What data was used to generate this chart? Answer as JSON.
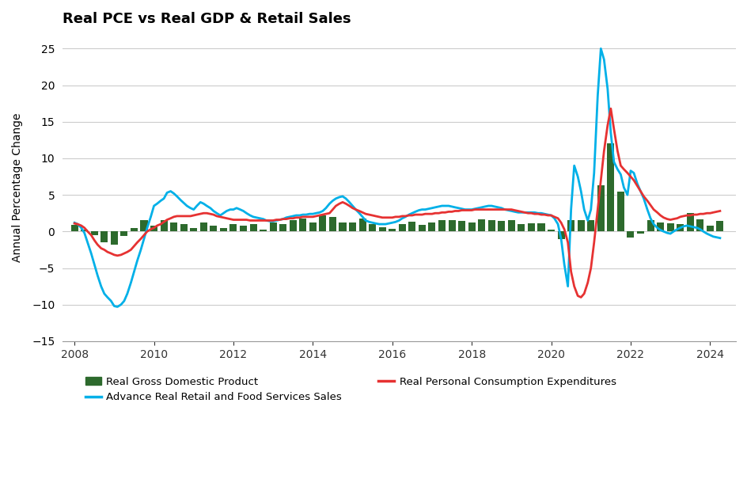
{
  "title": "Real PCE vs Real GDP & Retail Sales",
  "ylabel": "Annual Percentage Change",
  "ylim": [
    -15,
    27
  ],
  "yticks": [
    -15,
    -10,
    -5,
    0,
    5,
    10,
    15,
    20,
    25
  ],
  "background_color": "#ffffff",
  "grid_color": "#cccccc",
  "gdp_color": "#2d6a2d",
  "pce_color": "#e63232",
  "retail_color": "#00b0e8",
  "title_fontsize": 13,
  "label_fontsize": 10,
  "gdp_dates": [
    2008.0,
    2008.25,
    2008.5,
    2008.75,
    2009.0,
    2009.25,
    2009.5,
    2009.75,
    2010.0,
    2010.25,
    2010.5,
    2010.75,
    2011.0,
    2011.25,
    2011.5,
    2011.75,
    2012.0,
    2012.25,
    2012.5,
    2012.75,
    2013.0,
    2013.25,
    2013.5,
    2013.75,
    2014.0,
    2014.25,
    2014.5,
    2014.75,
    2015.0,
    2015.25,
    2015.5,
    2015.75,
    2016.0,
    2016.25,
    2016.5,
    2016.75,
    2017.0,
    2017.25,
    2017.5,
    2017.75,
    2018.0,
    2018.25,
    2018.5,
    2018.75,
    2019.0,
    2019.25,
    2019.5,
    2019.75,
    2020.0,
    2020.25,
    2020.5,
    2020.75,
    2021.0,
    2021.25,
    2021.5,
    2021.75,
    2022.0,
    2022.25,
    2022.5,
    2022.75,
    2023.0,
    2023.25,
    2023.5,
    2023.75,
    2024.0,
    2024.25
  ],
  "gdp_values": [
    0.9,
    0.2,
    -0.5,
    -1.5,
    -1.8,
    -0.6,
    0.5,
    1.5,
    0.8,
    1.5,
    1.2,
    1.0,
    0.5,
    1.2,
    0.8,
    0.5,
    1.0,
    0.8,
    1.0,
    0.3,
    1.2,
    1.0,
    1.5,
    1.8,
    1.2,
    2.2,
    2.0,
    1.2,
    1.2,
    1.8,
    1.0,
    0.6,
    0.4,
    1.0,
    1.3,
    0.9,
    1.2,
    1.5,
    1.5,
    1.4,
    1.2,
    1.7,
    1.6,
    1.4,
    1.5,
    1.0,
    1.1,
    1.1,
    0.3,
    -1.0,
    1.5,
    1.5,
    1.5,
    6.3,
    12.0,
    5.5,
    -0.8,
    -0.3,
    1.5,
    1.2,
    1.1,
    1.0,
    2.5,
    1.7,
    0.8,
    1.4
  ],
  "pce_dates": [
    2008.0,
    2008.08,
    2008.17,
    2008.25,
    2008.33,
    2008.42,
    2008.5,
    2008.58,
    2008.67,
    2008.75,
    2008.83,
    2008.92,
    2009.0,
    2009.08,
    2009.17,
    2009.25,
    2009.33,
    2009.42,
    2009.5,
    2009.58,
    2009.67,
    2009.75,
    2009.83,
    2009.92,
    2010.0,
    2010.08,
    2010.17,
    2010.25,
    2010.33,
    2010.42,
    2010.5,
    2010.58,
    2010.67,
    2010.75,
    2010.83,
    2010.92,
    2011.0,
    2011.08,
    2011.17,
    2011.25,
    2011.33,
    2011.42,
    2011.5,
    2011.58,
    2011.67,
    2011.75,
    2011.83,
    2011.92,
    2012.0,
    2012.08,
    2012.17,
    2012.25,
    2012.33,
    2012.42,
    2012.5,
    2012.58,
    2012.67,
    2012.75,
    2012.83,
    2012.92,
    2013.0,
    2013.08,
    2013.17,
    2013.25,
    2013.33,
    2013.42,
    2013.5,
    2013.58,
    2013.67,
    2013.75,
    2013.83,
    2013.92,
    2014.0,
    2014.08,
    2014.17,
    2014.25,
    2014.33,
    2014.42,
    2014.5,
    2014.58,
    2014.67,
    2014.75,
    2014.83,
    2014.92,
    2015.0,
    2015.08,
    2015.17,
    2015.25,
    2015.33,
    2015.42,
    2015.5,
    2015.58,
    2015.67,
    2015.75,
    2015.83,
    2015.92,
    2016.0,
    2016.08,
    2016.17,
    2016.25,
    2016.33,
    2016.42,
    2016.5,
    2016.58,
    2016.67,
    2016.75,
    2016.83,
    2016.92,
    2017.0,
    2017.08,
    2017.17,
    2017.25,
    2017.33,
    2017.42,
    2017.5,
    2017.58,
    2017.67,
    2017.75,
    2017.83,
    2017.92,
    2018.0,
    2018.08,
    2018.17,
    2018.25,
    2018.33,
    2018.42,
    2018.5,
    2018.58,
    2018.67,
    2018.75,
    2018.83,
    2018.92,
    2019.0,
    2019.08,
    2019.17,
    2019.25,
    2019.33,
    2019.42,
    2019.5,
    2019.58,
    2019.67,
    2019.75,
    2019.83,
    2019.92,
    2020.0,
    2020.08,
    2020.17,
    2020.25,
    2020.33,
    2020.42,
    2020.5,
    2020.58,
    2020.67,
    2020.75,
    2020.83,
    2020.92,
    2021.0,
    2021.08,
    2021.17,
    2021.25,
    2021.33,
    2021.42,
    2021.5,
    2021.58,
    2021.67,
    2021.75,
    2021.83,
    2021.92,
    2022.0,
    2022.08,
    2022.17,
    2022.25,
    2022.33,
    2022.42,
    2022.5,
    2022.58,
    2022.67,
    2022.75,
    2022.83,
    2022.92,
    2023.0,
    2023.08,
    2023.17,
    2023.25,
    2023.33,
    2023.42,
    2023.5,
    2023.58,
    2023.67,
    2023.75,
    2023.83,
    2023.92,
    2024.0,
    2024.08,
    2024.17,
    2024.25
  ],
  "pce_values": [
    1.1,
    1.0,
    0.8,
    0.5,
    0.0,
    -0.5,
    -1.2,
    -1.8,
    -2.3,
    -2.5,
    -2.8,
    -3.0,
    -3.2,
    -3.3,
    -3.2,
    -3.0,
    -2.8,
    -2.5,
    -2.0,
    -1.5,
    -1.0,
    -0.5,
    0.0,
    0.3,
    0.5,
    0.8,
    1.0,
    1.3,
    1.6,
    1.8,
    2.0,
    2.1,
    2.1,
    2.1,
    2.1,
    2.1,
    2.2,
    2.3,
    2.4,
    2.5,
    2.5,
    2.4,
    2.3,
    2.1,
    2.0,
    1.9,
    1.8,
    1.7,
    1.6,
    1.6,
    1.6,
    1.6,
    1.6,
    1.5,
    1.5,
    1.5,
    1.5,
    1.5,
    1.5,
    1.5,
    1.5,
    1.6,
    1.6,
    1.7,
    1.7,
    1.8,
    1.8,
    1.9,
    1.9,
    2.0,
    2.0,
    2.0,
    2.0,
    2.1,
    2.2,
    2.3,
    2.4,
    2.5,
    3.0,
    3.5,
    3.8,
    4.0,
    3.8,
    3.5,
    3.2,
    3.0,
    2.8,
    2.6,
    2.4,
    2.3,
    2.2,
    2.1,
    2.0,
    1.9,
    1.9,
    1.9,
    1.9,
    2.0,
    2.0,
    2.1,
    2.1,
    2.2,
    2.2,
    2.3,
    2.3,
    2.3,
    2.4,
    2.4,
    2.4,
    2.5,
    2.5,
    2.6,
    2.6,
    2.7,
    2.7,
    2.8,
    2.8,
    2.9,
    2.9,
    2.9,
    2.9,
    3.0,
    3.0,
    3.0,
    3.0,
    3.0,
    3.0,
    3.0,
    3.0,
    3.0,
    3.0,
    3.0,
    3.0,
    2.9,
    2.8,
    2.7,
    2.6,
    2.5,
    2.5,
    2.4,
    2.4,
    2.3,
    2.3,
    2.2,
    2.2,
    2.0,
    1.8,
    1.2,
    0.3,
    -1.5,
    -5.5,
    -7.5,
    -8.8,
    -9.0,
    -8.5,
    -7.0,
    -5.0,
    -1.5,
    3.0,
    7.0,
    11.0,
    14.5,
    16.8,
    14.0,
    11.0,
    9.0,
    8.5,
    8.0,
    7.5,
    7.0,
    6.2,
    5.5,
    4.8,
    4.2,
    3.6,
    3.0,
    2.6,
    2.2,
    1.9,
    1.7,
    1.6,
    1.7,
    1.8,
    2.0,
    2.1,
    2.2,
    2.2,
    2.3,
    2.3,
    2.4,
    2.4,
    2.5,
    2.5,
    2.6,
    2.7,
    2.8
  ],
  "retail_dates": [
    2008.0,
    2008.08,
    2008.17,
    2008.25,
    2008.33,
    2008.42,
    2008.5,
    2008.58,
    2008.67,
    2008.75,
    2008.83,
    2008.92,
    2009.0,
    2009.08,
    2009.17,
    2009.25,
    2009.33,
    2009.42,
    2009.5,
    2009.58,
    2009.67,
    2009.75,
    2009.83,
    2009.92,
    2010.0,
    2010.08,
    2010.17,
    2010.25,
    2010.33,
    2010.42,
    2010.5,
    2010.58,
    2010.67,
    2010.75,
    2010.83,
    2010.92,
    2011.0,
    2011.08,
    2011.17,
    2011.25,
    2011.33,
    2011.42,
    2011.5,
    2011.58,
    2011.67,
    2011.75,
    2011.83,
    2011.92,
    2012.0,
    2012.08,
    2012.17,
    2012.25,
    2012.33,
    2012.42,
    2012.5,
    2012.58,
    2012.67,
    2012.75,
    2012.83,
    2012.92,
    2013.0,
    2013.08,
    2013.17,
    2013.25,
    2013.33,
    2013.42,
    2013.5,
    2013.58,
    2013.67,
    2013.75,
    2013.83,
    2013.92,
    2014.0,
    2014.08,
    2014.17,
    2014.25,
    2014.33,
    2014.42,
    2014.5,
    2014.58,
    2014.67,
    2014.75,
    2014.83,
    2014.92,
    2015.0,
    2015.08,
    2015.17,
    2015.25,
    2015.33,
    2015.42,
    2015.5,
    2015.58,
    2015.67,
    2015.75,
    2015.83,
    2015.92,
    2016.0,
    2016.08,
    2016.17,
    2016.25,
    2016.33,
    2016.42,
    2016.5,
    2016.58,
    2016.67,
    2016.75,
    2016.83,
    2016.92,
    2017.0,
    2017.08,
    2017.17,
    2017.25,
    2017.33,
    2017.42,
    2017.5,
    2017.58,
    2017.67,
    2017.75,
    2017.83,
    2017.92,
    2018.0,
    2018.08,
    2018.17,
    2018.25,
    2018.33,
    2018.42,
    2018.5,
    2018.58,
    2018.67,
    2018.75,
    2018.83,
    2018.92,
    2019.0,
    2019.08,
    2019.17,
    2019.25,
    2019.33,
    2019.42,
    2019.5,
    2019.58,
    2019.67,
    2019.75,
    2019.83,
    2019.92,
    2020.0,
    2020.08,
    2020.17,
    2020.25,
    2020.33,
    2020.42,
    2020.5,
    2020.58,
    2020.67,
    2020.75,
    2020.83,
    2020.92,
    2021.0,
    2021.08,
    2021.17,
    2021.25,
    2021.33,
    2021.42,
    2021.5,
    2021.58,
    2021.67,
    2021.75,
    2021.83,
    2021.92,
    2022.0,
    2022.08,
    2022.17,
    2022.25,
    2022.33,
    2022.42,
    2022.5,
    2022.58,
    2022.67,
    2022.75,
    2022.83,
    2022.92,
    2023.0,
    2023.08,
    2023.17,
    2023.25,
    2023.33,
    2023.42,
    2023.5,
    2023.58,
    2023.67,
    2023.75,
    2023.83,
    2023.92,
    2024.0,
    2024.08,
    2024.17,
    2024.25
  ],
  "retail_values": [
    1.2,
    1.0,
    0.5,
    -0.2,
    -1.5,
    -3.0,
    -4.5,
    -6.0,
    -7.5,
    -8.5,
    -9.0,
    -9.5,
    -10.2,
    -10.3,
    -10.0,
    -9.5,
    -8.5,
    -7.0,
    -5.5,
    -4.0,
    -2.5,
    -1.0,
    0.5,
    2.0,
    3.5,
    3.8,
    4.2,
    4.5,
    5.3,
    5.5,
    5.2,
    4.8,
    4.3,
    3.9,
    3.5,
    3.2,
    3.0,
    3.5,
    4.0,
    3.8,
    3.5,
    3.2,
    2.8,
    2.5,
    2.2,
    2.5,
    2.8,
    3.0,
    3.0,
    3.2,
    3.0,
    2.8,
    2.5,
    2.2,
    2.0,
    1.9,
    1.8,
    1.7,
    1.5,
    1.4,
    1.4,
    1.5,
    1.6,
    1.7,
    1.9,
    2.0,
    2.1,
    2.2,
    2.2,
    2.3,
    2.3,
    2.4,
    2.4,
    2.5,
    2.6,
    2.8,
    3.2,
    3.8,
    4.2,
    4.5,
    4.7,
    4.8,
    4.5,
    4.0,
    3.5,
    3.0,
    2.5,
    2.0,
    1.5,
    1.3,
    1.2,
    1.1,
    1.0,
    1.0,
    1.0,
    1.1,
    1.2,
    1.3,
    1.5,
    1.8,
    2.0,
    2.3,
    2.5,
    2.7,
    2.9,
    3.0,
    3.0,
    3.1,
    3.2,
    3.3,
    3.4,
    3.5,
    3.5,
    3.5,
    3.4,
    3.3,
    3.2,
    3.1,
    3.0,
    3.0,
    3.0,
    3.1,
    3.2,
    3.3,
    3.4,
    3.5,
    3.5,
    3.4,
    3.3,
    3.2,
    3.0,
    2.9,
    2.8,
    2.7,
    2.6,
    2.6,
    2.6,
    2.6,
    2.6,
    2.6,
    2.5,
    2.5,
    2.4,
    2.3,
    2.2,
    1.8,
    1.0,
    -1.0,
    -4.5,
    -7.5,
    3.0,
    9.0,
    7.5,
    5.5,
    3.0,
    1.5,
    3.0,
    8.0,
    18.5,
    25.0,
    23.5,
    19.5,
    13.5,
    9.5,
    8.5,
    7.8,
    6.0,
    5.0,
    8.3,
    8.0,
    6.5,
    5.5,
    4.5,
    3.0,
    1.8,
    1.0,
    0.5,
    0.2,
    0.0,
    -0.2,
    -0.3,
    0.0,
    0.3,
    0.5,
    0.7,
    0.8,
    0.7,
    0.6,
    0.5,
    0.3,
    0.0,
    -0.3,
    -0.5,
    -0.7,
    -0.8,
    -0.9
  ],
  "xtick_years": [
    2008,
    2010,
    2012,
    2014,
    2016,
    2018,
    2020,
    2022,
    2024
  ],
  "legend_items": [
    {
      "label": "Real Gross Domestic Product",
      "color": "#2d6a2d",
      "type": "bar"
    },
    {
      "label": "Advance Real Retail and Food Services Sales",
      "color": "#00b0e8",
      "type": "line"
    },
    {
      "label": "Real Personal Consumption Expenditures",
      "color": "#e63232",
      "type": "line"
    }
  ]
}
